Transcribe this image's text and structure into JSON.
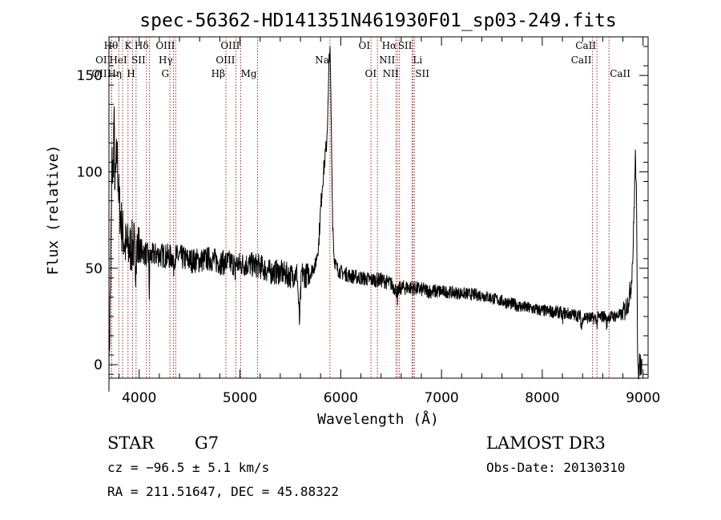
{
  "chart_data": {
    "type": "line",
    "title": "spec-56362-HD141351N461930F01_sp03-249.fits",
    "xlabel": "Wavelength (Å)",
    "ylabel": "Flux (relative)",
    "xlim": [
      3700,
      9050
    ],
    "ylim": [
      -7,
      170
    ],
    "x_ticks": [
      4000,
      5000,
      6000,
      7000,
      8000,
      9000
    ],
    "x_tick_labels": [
      "4000",
      "5000",
      "6000",
      "7000",
      "8000",
      "9000"
    ],
    "y_ticks": [
      0,
      50,
      100,
      150
    ],
    "y_tick_labels": [
      "0",
      "50",
      "100",
      "150"
    ],
    "grid": false,
    "series": [
      {
        "name": "flux",
        "anchors": [
          [
            3700,
            0
          ],
          [
            3710,
            25
          ],
          [
            3720,
            60
          ],
          [
            3730,
            105
          ],
          [
            3740,
            95
          ],
          [
            3750,
            130
          ],
          [
            3760,
            90
          ],
          [
            3780,
            110
          ],
          [
            3800,
            85
          ],
          [
            3830,
            70
          ],
          [
            3860,
            62
          ],
          [
            3900,
            60
          ],
          [
            3950,
            62
          ],
          [
            4000,
            60
          ],
          [
            4050,
            58
          ],
          [
            4100,
            56
          ],
          [
            4150,
            57
          ],
          [
            4200,
            57
          ],
          [
            4300,
            56
          ],
          [
            4400,
            56
          ],
          [
            4500,
            54
          ],
          [
            4600,
            54
          ],
          [
            4700,
            55
          ],
          [
            4800,
            53
          ],
          [
            4900,
            53
          ],
          [
            5000,
            52
          ],
          [
            5100,
            52
          ],
          [
            5200,
            51
          ],
          [
            5300,
            48
          ],
          [
            5400,
            48
          ],
          [
            5500,
            46
          ],
          [
            5600,
            48
          ],
          [
            5650,
            46
          ],
          [
            5700,
            48
          ],
          [
            5750,
            52
          ],
          [
            5780,
            62
          ],
          [
            5800,
            80
          ],
          [
            5820,
            95
          ],
          [
            5840,
            105
          ],
          [
            5860,
            115
          ],
          [
            5875,
            135
          ],
          [
            5885,
            160
          ],
          [
            5893,
            164
          ],
          [
            5900,
            145
          ],
          [
            5910,
            110
          ],
          [
            5920,
            75
          ],
          [
            5935,
            55
          ],
          [
            5960,
            50
          ],
          [
            6000,
            48
          ],
          [
            6100,
            46
          ],
          [
            6200,
            45
          ],
          [
            6300,
            44
          ],
          [
            6400,
            44
          ],
          [
            6500,
            42
          ],
          [
            6560,
            38
          ],
          [
            6600,
            40
          ],
          [
            6700,
            40
          ],
          [
            6800,
            39
          ],
          [
            6900,
            38
          ],
          [
            7000,
            38
          ],
          [
            7200,
            37
          ],
          [
            7400,
            36
          ],
          [
            7600,
            33
          ],
          [
            7800,
            30
          ],
          [
            8000,
            28
          ],
          [
            8200,
            27
          ],
          [
            8400,
            25
          ],
          [
            8500,
            24
          ],
          [
            8600,
            25
          ],
          [
            8700,
            25
          ],
          [
            8800,
            26
          ],
          [
            8850,
            32
          ],
          [
            8880,
            40
          ],
          [
            8900,
            58
          ],
          [
            8915,
            90
          ],
          [
            8925,
            110
          ],
          [
            8935,
            85
          ],
          [
            8945,
            10
          ],
          [
            8955,
            -3
          ],
          [
            8965,
            0
          ],
          [
            8975,
            0
          ],
          [
            8990,
            -1
          ]
        ],
        "features": [
          [
            5590,
            -26,
            22
          ],
          [
            4950,
            -10,
            6
          ],
          [
            4100,
            -20,
            6
          ],
          [
            3960,
            -15,
            10
          ],
          [
            4340,
            -6,
            10
          ],
          [
            6563,
            -8,
            6
          ],
          [
            8390,
            -7,
            12
          ],
          [
            8200,
            -4,
            10
          ],
          [
            8640,
            -5,
            10
          ],
          [
            8542,
            -4,
            8
          ]
        ]
      }
    ],
    "line_markers": [
      {
        "name": "Hθ",
        "wavelength": 3798,
        "label_row": 0,
        "label_side": "left"
      },
      {
        "name": "OII",
        "wavelength": 3727,
        "label_row": 1,
        "label_side": "left"
      },
      {
        "name": "OIII",
        "wavelength": 3727,
        "label_row": 2,
        "label_side": "left"
      },
      {
        "name": "Hη",
        "wavelength": 3835,
        "label_row": 2,
        "label_side": "left"
      },
      {
        "name": "HeI",
        "wavelength": 3889,
        "label_row": 1,
        "label_side": "left"
      },
      {
        "name": "K",
        "wavelength": 3934,
        "label_row": 0,
        "label_side": "left"
      },
      {
        "name": "SII",
        "wavelength": 4072,
        "label_row": 1,
        "label_side": "left"
      },
      {
        "name": "H",
        "wavelength": 3969,
        "label_row": 2,
        "label_side": "left"
      },
      {
        "name": "Hδ",
        "wavelength": 4102,
        "label_row": 0,
        "label_side": "left"
      },
      {
        "name": "OIII",
        "wavelength": 4363,
        "label_row": 0,
        "label_side": "left"
      },
      {
        "name": "Hγ",
        "wavelength": 4341,
        "label_row": 1,
        "label_side": "left"
      },
      {
        "name": "G",
        "wavelength": 4305,
        "label_row": 2,
        "label_side": "left"
      },
      {
        "name": "Hβ",
        "wavelength": 4861,
        "label_row": 2,
        "label_side": "left"
      },
      {
        "name": "OIII",
        "wavelength": 5007,
        "label_row": 0,
        "label_side": "left"
      },
      {
        "name": "OIII",
        "wavelength": 4959,
        "label_row": 1,
        "label_side": "left"
      },
      {
        "name": "Mg",
        "wavelength": 5175,
        "label_row": 2,
        "label_side": "left"
      },
      {
        "name": "Na",
        "wavelength": 5893,
        "label_row": 1,
        "label_side": "left"
      },
      {
        "name": "OI",
        "wavelength": 6300,
        "label_row": 0,
        "label_side": "left"
      },
      {
        "name": "OI",
        "wavelength": 6364,
        "label_row": 2,
        "label_side": "left"
      },
      {
        "name": "Hα",
        "wavelength": 6563,
        "label_row": 0,
        "label_side": "left"
      },
      {
        "name": "NII",
        "wavelength": 6548,
        "label_row": 1,
        "label_side": "left"
      },
      {
        "name": "NII",
        "wavelength": 6583,
        "label_row": 2,
        "label_side": "left"
      },
      {
        "name": "SII",
        "wavelength": 6716,
        "label_row": 0,
        "label_side": "left"
      },
      {
        "name": "Li",
        "wavelength": 6708,
        "label_row": 1,
        "label_side": "right"
      },
      {
        "name": "SII",
        "wavelength": 6731,
        "label_row": 2,
        "label_side": "right"
      },
      {
        "name": "CaII",
        "wavelength": 8498,
        "label_row": 1,
        "label_side": "left"
      },
      {
        "name": "CaII",
        "wavelength": 8542,
        "label_row": 0,
        "label_side": "left"
      },
      {
        "name": "CaII",
        "wavelength": 8662,
        "label_row": 2,
        "label_side": "right"
      }
    ]
  },
  "info": {
    "object_class": "STAR",
    "subclass": "G7",
    "survey": "LAMOST DR3",
    "cz": "cz = −96.5 ± 5.1 km/s",
    "obs_date": "Obs-Date: 20130310",
    "coords": "RA = 211.51647, DEC =  45.88322"
  },
  "colors": {
    "spectrum": "#000000",
    "line_marker": "#a8292a",
    "axis": "#000000",
    "background": "#ffffff"
  }
}
